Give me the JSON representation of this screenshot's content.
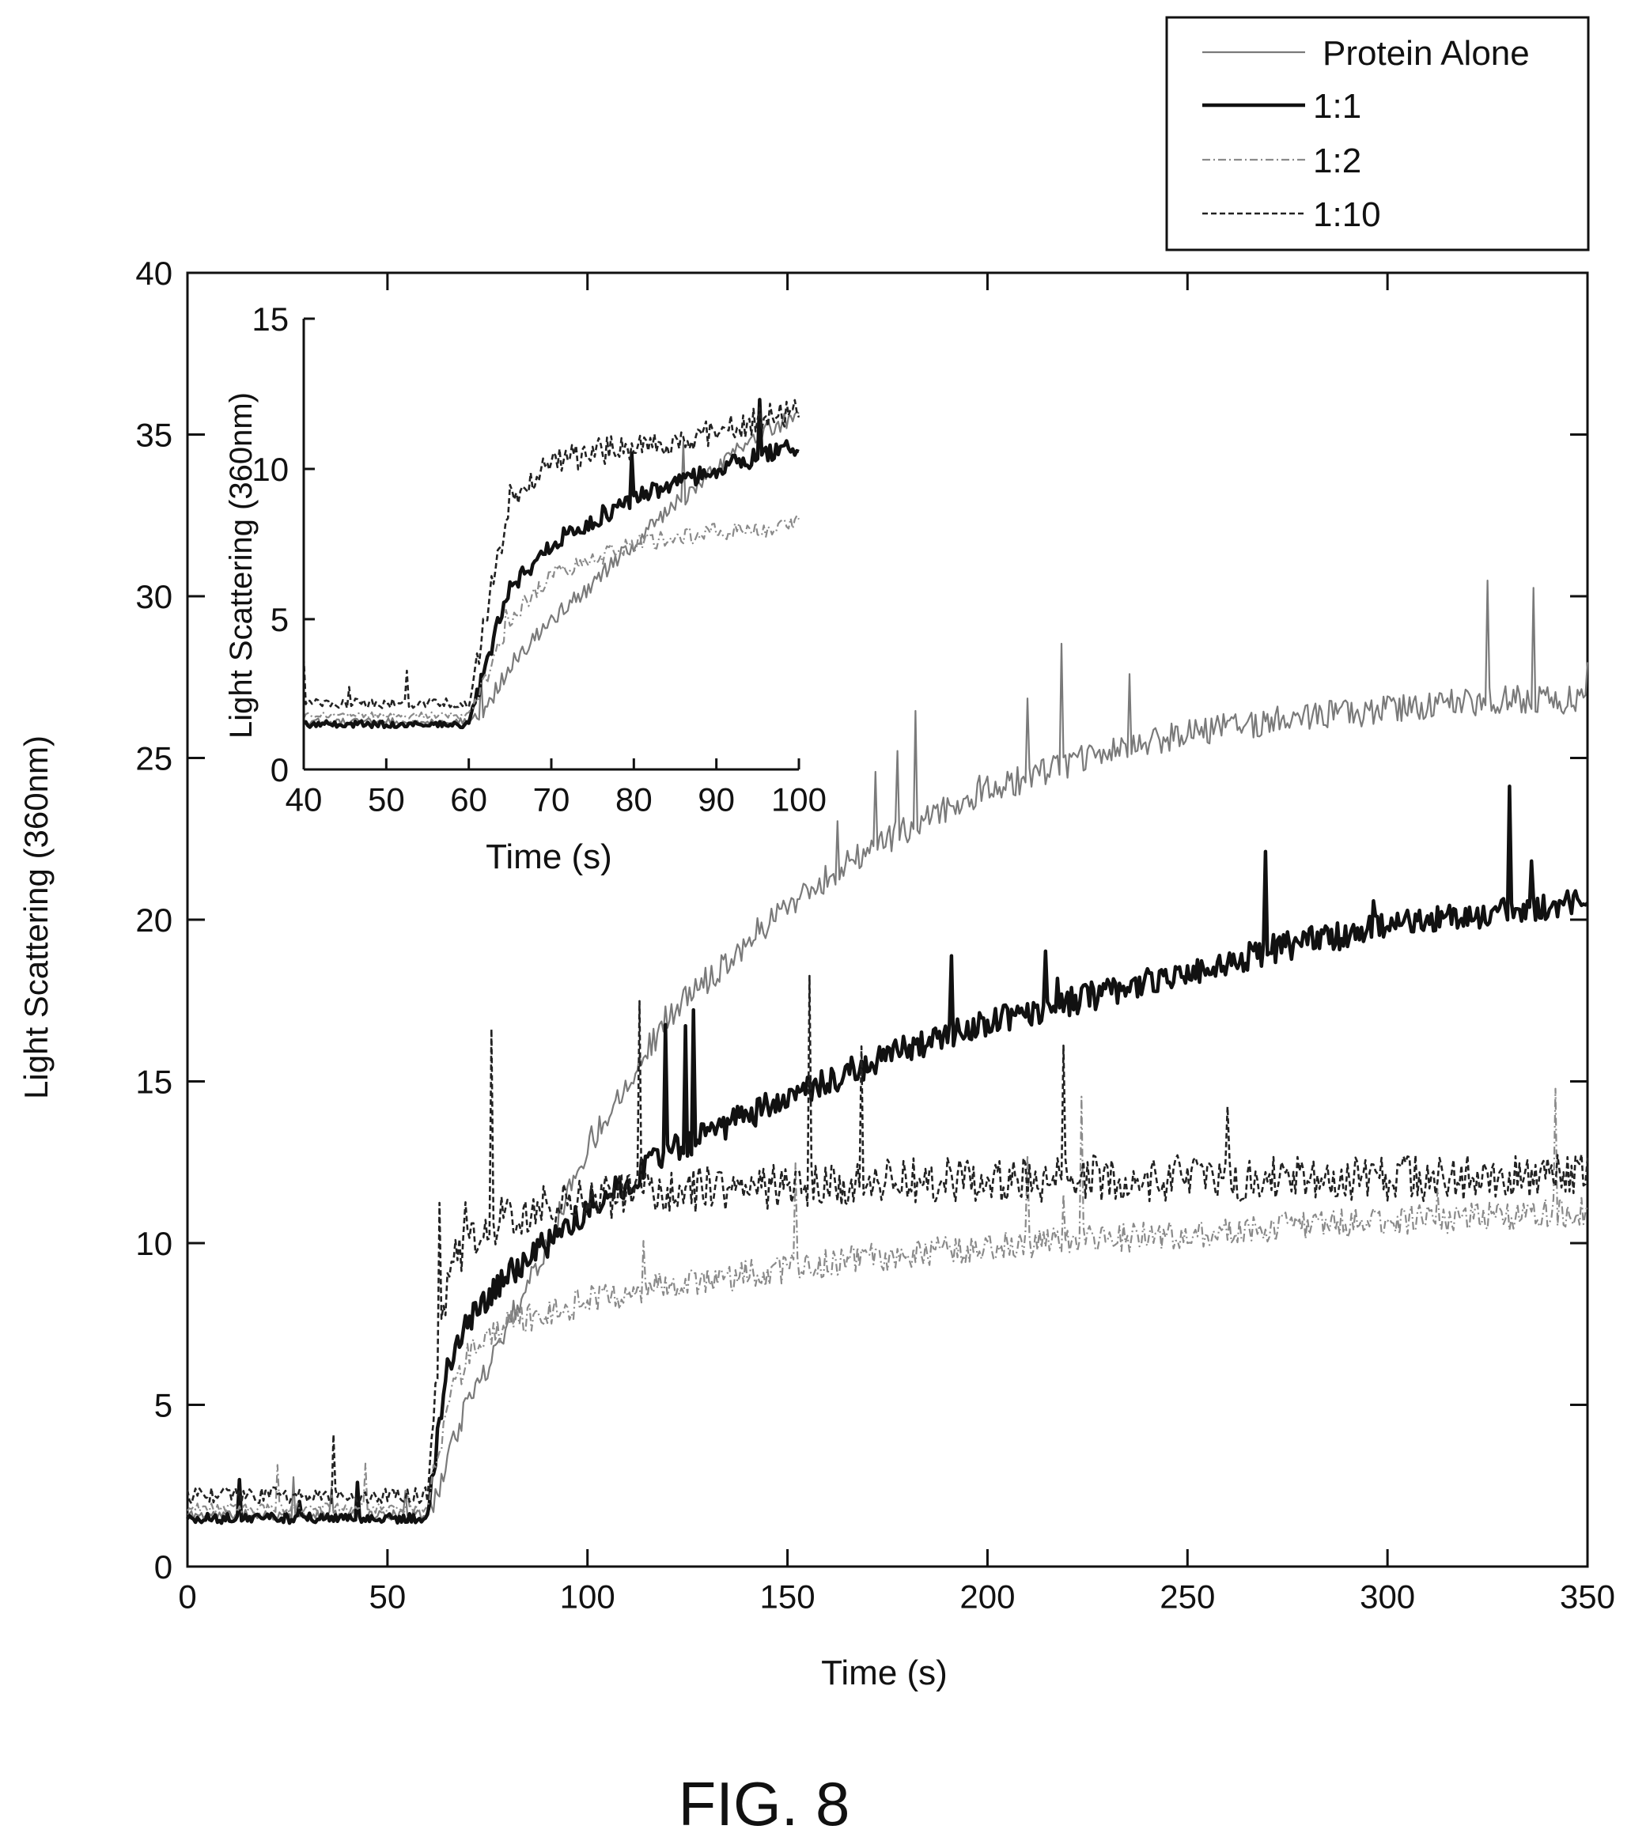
{
  "chart_data": [
    {
      "type": "line",
      "role": "main",
      "xlabel": "Time (s)",
      "ylabel": "Light Scattering (360nm)",
      "xlim": [
        0,
        350
      ],
      "ylim": [
        0,
        40
      ],
      "xticks": [
        0,
        50,
        100,
        150,
        200,
        250,
        300,
        350
      ],
      "yticks": [
        0,
        5,
        10,
        15,
        20,
        25,
        30,
        35,
        40
      ],
      "grid": false,
      "legend_position": "above-top-right",
      "series": [
        {
          "name": "Protein Alone",
          "color": "#7a7a7a",
          "style": "solid-thin",
          "x": [
            0,
            20,
            40,
            60,
            62,
            65,
            70,
            80,
            90,
            100,
            120,
            150,
            175,
            200,
            225,
            250,
            275,
            300,
            325,
            350
          ],
          "y": [
            1.6,
            1.6,
            1.6,
            1.6,
            2.0,
            3.5,
            5.0,
            7.5,
            10.0,
            13.0,
            17.0,
            20.5,
            22.5,
            24.0,
            25.0,
            25.8,
            26.2,
            26.5,
            26.8,
            26.8
          ]
        },
        {
          "name": "1:1",
          "color": "#111111",
          "style": "solid-thick",
          "x": [
            0,
            20,
            40,
            60,
            62,
            65,
            70,
            80,
            90,
            100,
            120,
            150,
            175,
            200,
            225,
            250,
            275,
            300,
            325,
            350
          ],
          "y": [
            1.5,
            1.5,
            1.5,
            1.5,
            3.5,
            6.0,
            7.5,
            9.0,
            10.0,
            11.0,
            12.8,
            14.5,
            15.8,
            16.8,
            17.6,
            18.4,
            19.2,
            19.8,
            20.2,
            20.6
          ]
        },
        {
          "name": "1:2",
          "color": "#8a8a8a",
          "style": "dashdot",
          "x": [
            0,
            20,
            40,
            60,
            62,
            65,
            70,
            80,
            90,
            100,
            120,
            150,
            175,
            200,
            225,
            250,
            275,
            300,
            325,
            350
          ],
          "y": [
            1.8,
            1.8,
            1.8,
            1.8,
            3.0,
            5.0,
            6.5,
            7.5,
            7.9,
            8.2,
            8.7,
            9.2,
            9.6,
            9.9,
            10.1,
            10.3,
            10.5,
            10.7,
            10.8,
            11.0
          ]
        },
        {
          "name": "1:10",
          "color": "#222222",
          "style": "dashed",
          "x": [
            0,
            20,
            40,
            60,
            62,
            65,
            70,
            80,
            90,
            100,
            120,
            150,
            175,
            200,
            225,
            250,
            275,
            300,
            325,
            350
          ],
          "y": [
            2.2,
            2.2,
            2.2,
            2.2,
            5.0,
            9.0,
            10.2,
            10.8,
            11.2,
            11.4,
            11.6,
            11.8,
            11.9,
            12.0,
            12.0,
            12.0,
            12.0,
            12.0,
            12.0,
            12.2
          ]
        }
      ]
    },
    {
      "type": "line",
      "role": "inset",
      "xlabel": "Time (s)",
      "ylabel": "Light Scattering (360nm)",
      "xlim": [
        40,
        100
      ],
      "ylim": [
        0,
        15
      ],
      "xticks": [
        40,
        50,
        60,
        70,
        80,
        90,
        100
      ],
      "yticks": [
        0,
        5,
        10,
        15
      ],
      "grid": false,
      "series": [
        {
          "name": "Protein Alone",
          "x": [
            40,
            50,
            60,
            62,
            65,
            70,
            75,
            80,
            85,
            90,
            95,
            100
          ],
          "y": [
            1.6,
            1.6,
            1.6,
            2.0,
            3.5,
            5.0,
            6.2,
            7.5,
            8.8,
            10.0,
            11.2,
            11.8
          ]
        },
        {
          "name": "1:1",
          "x": [
            40,
            50,
            60,
            62,
            65,
            70,
            75,
            80,
            85,
            90,
            95,
            100
          ],
          "y": [
            1.5,
            1.5,
            1.5,
            3.5,
            6.0,
            7.5,
            8.3,
            9.0,
            9.5,
            10.0,
            10.4,
            10.8
          ]
        },
        {
          "name": "1:2",
          "x": [
            40,
            50,
            60,
            62,
            65,
            70,
            75,
            80,
            85,
            90,
            95,
            100
          ],
          "y": [
            1.8,
            1.8,
            1.8,
            3.0,
            5.0,
            6.5,
            7.0,
            7.5,
            7.7,
            7.9,
            8.0,
            8.2
          ]
        },
        {
          "name": "1:10",
          "x": [
            40,
            50,
            60,
            62,
            65,
            70,
            75,
            80,
            85,
            90,
            95,
            100
          ],
          "y": [
            2.2,
            2.2,
            2.2,
            5.0,
            9.0,
            10.2,
            10.5,
            10.8,
            11.0,
            11.2,
            11.6,
            12.0
          ]
        }
      ]
    }
  ],
  "legend": {
    "entries": [
      "Protein Alone",
      "1:1",
      "1:2",
      "1:10"
    ]
  },
  "figure_caption": "FIG. 8"
}
